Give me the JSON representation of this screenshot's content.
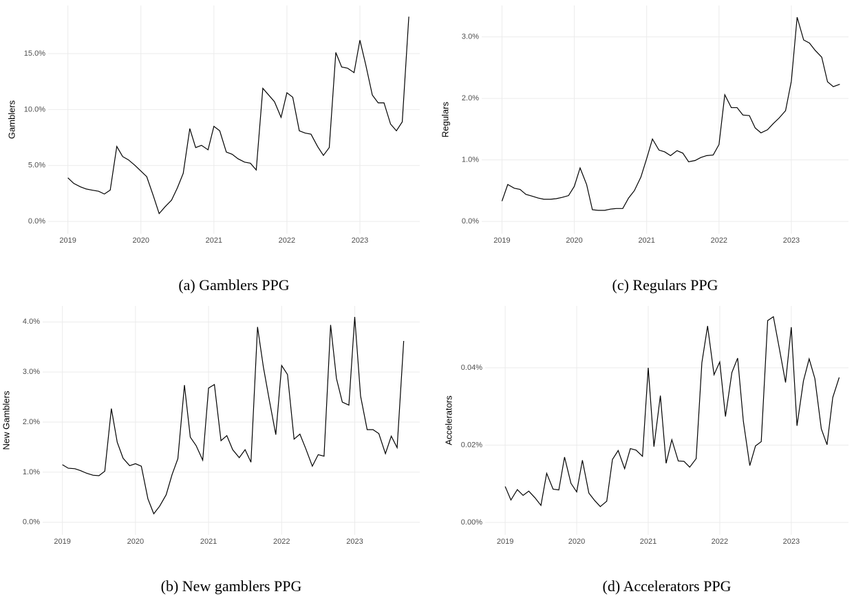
{
  "chart_data": [
    {
      "type": "line",
      "caption": "(a) Gamblers PPG",
      "y_label": "Gamblers",
      "color": "#000000",
      "grid": true,
      "x": [
        2019.0,
        2019.08,
        2019.17,
        2019.25,
        2019.33,
        2019.42,
        2019.5,
        2019.58,
        2019.67,
        2019.75,
        2019.83,
        2019.92,
        2020.0,
        2020.08,
        2020.17,
        2020.25,
        2020.33,
        2020.42,
        2020.5,
        2020.58,
        2020.67,
        2020.75,
        2020.83,
        2020.92,
        2021.0,
        2021.08,
        2021.17,
        2021.25,
        2021.33,
        2021.42,
        2021.5,
        2021.58,
        2021.67,
        2021.75,
        2021.83,
        2021.92,
        2022.0,
        2022.08,
        2022.17,
        2022.25,
        2022.33,
        2022.42,
        2022.5,
        2022.58,
        2022.67,
        2022.75,
        2022.83,
        2022.92,
        2023.0,
        2023.08,
        2023.17,
        2023.25,
        2023.33,
        2023.42,
        2023.5,
        2023.58,
        2023.67
      ],
      "values": [
        3.9,
        3.4,
        3.1,
        2.9,
        2.8,
        2.7,
        2.45,
        2.8,
        6.7,
        5.8,
        5.5,
        5.0,
        4.5,
        4.0,
        2.3,
        0.7,
        1.3,
        1.9,
        3.0,
        4.3,
        8.3,
        6.6,
        6.8,
        6.4,
        8.5,
        8.1,
        6.2,
        6.0,
        5.6,
        5.3,
        5.2,
        4.6,
        11.9,
        11.3,
        10.7,
        9.3,
        11.5,
        11.1,
        8.1,
        7.9,
        7.8,
        6.7,
        5.9,
        6.6,
        15.1,
        13.8,
        13.7,
        13.3,
        16.2,
        14.0,
        11.3,
        10.6,
        10.6,
        8.7,
        8.1,
        8.9,
        18.3
      ],
      "xlim": [
        2018.73,
        2023.82
      ],
      "xticks": [
        2019,
        2020,
        2021,
        2022,
        2023
      ],
      "ylim": [
        -1.1,
        19.3
      ],
      "yticks": [
        {
          "value": 0,
          "label": "0.0%"
        },
        {
          "value": 5,
          "label": "5.0%"
        },
        {
          "value": 10,
          "label": "10.0%"
        },
        {
          "value": 15,
          "label": "15.0%"
        }
      ]
    },
    {
      "type": "line",
      "caption": "(c) Regulars PPG",
      "y_label": "Regulars",
      "color": "#000000",
      "grid": true,
      "x": [
        2019.0,
        2019.08,
        2019.17,
        2019.25,
        2019.33,
        2019.42,
        2019.5,
        2019.58,
        2019.67,
        2019.75,
        2019.83,
        2019.92,
        2020.0,
        2020.08,
        2020.17,
        2020.25,
        2020.33,
        2020.42,
        2020.5,
        2020.58,
        2020.67,
        2020.75,
        2020.83,
        2020.92,
        2021.0,
        2021.08,
        2021.17,
        2021.25,
        2021.33,
        2021.42,
        2021.5,
        2021.58,
        2021.67,
        2021.75,
        2021.83,
        2021.92,
        2022.0,
        2022.08,
        2022.17,
        2022.25,
        2022.33,
        2022.42,
        2022.5,
        2022.58,
        2022.67,
        2022.75,
        2022.83,
        2022.92,
        2023.0,
        2023.08,
        2023.17,
        2023.25,
        2023.33,
        2023.42,
        2023.5,
        2023.58,
        2023.67
      ],
      "values": [
        0.33,
        0.6,
        0.54,
        0.52,
        0.44,
        0.41,
        0.38,
        0.36,
        0.36,
        0.37,
        0.39,
        0.42,
        0.57,
        0.87,
        0.6,
        0.19,
        0.18,
        0.18,
        0.2,
        0.21,
        0.21,
        0.38,
        0.5,
        0.72,
        1.02,
        1.34,
        1.16,
        1.13,
        1.07,
        1.15,
        1.11,
        0.97,
        0.99,
        1.04,
        1.07,
        1.08,
        1.25,
        2.06,
        1.85,
        1.85,
        1.73,
        1.72,
        1.52,
        1.44,
        1.49,
        1.59,
        1.68,
        1.8,
        2.28,
        3.32,
        2.95,
        2.9,
        2.78,
        2.67,
        2.27,
        2.19,
        2.23
      ],
      "xlim": [
        2018.72,
        2023.79
      ],
      "xticks": [
        2019,
        2020,
        2021,
        2022,
        2023
      ],
      "ylim": [
        -0.2,
        3.51
      ],
      "yticks": [
        {
          "value": 0,
          "label": "0.0%"
        },
        {
          "value": 1,
          "label": "1.0%"
        },
        {
          "value": 2,
          "label": "2.0%"
        },
        {
          "value": 3,
          "label": "3.0%"
        }
      ]
    },
    {
      "type": "line",
      "caption": "(b) New gamblers PPG",
      "y_label": "New Gamblers",
      "color": "#000000",
      "grid": true,
      "x": [
        2019.0,
        2019.08,
        2019.17,
        2019.25,
        2019.33,
        2019.42,
        2019.5,
        2019.58,
        2019.67,
        2019.75,
        2019.83,
        2019.92,
        2020.0,
        2020.08,
        2020.17,
        2020.25,
        2020.33,
        2020.42,
        2020.5,
        2020.58,
        2020.67,
        2020.75,
        2020.83,
        2020.92,
        2021.0,
        2021.08,
        2021.17,
        2021.25,
        2021.33,
        2021.42,
        2021.5,
        2021.58,
        2021.67,
        2021.75,
        2021.83,
        2021.92,
        2022.0,
        2022.08,
        2022.17,
        2022.25,
        2022.33,
        2022.42,
        2022.5,
        2022.58,
        2022.67,
        2022.75,
        2022.83,
        2022.92,
        2023.0,
        2023.08,
        2023.17,
        2023.25,
        2023.33,
        2023.42,
        2023.5,
        2023.58,
        2023.67
      ],
      "values": [
        1.15,
        1.08,
        1.07,
        1.03,
        0.98,
        0.94,
        0.93,
        1.02,
        2.27,
        1.6,
        1.28,
        1.13,
        1.17,
        1.12,
        0.47,
        0.17,
        0.32,
        0.55,
        0.95,
        1.27,
        2.74,
        1.7,
        1.53,
        1.24,
        2.68,
        2.75,
        1.63,
        1.73,
        1.45,
        1.29,
        1.45,
        1.2,
        3.9,
        3.1,
        2.45,
        1.75,
        3.13,
        2.95,
        1.66,
        1.76,
        1.47,
        1.12,
        1.35,
        1.32,
        3.94,
        2.87,
        2.4,
        2.34,
        4.1,
        2.52,
        1.85,
        1.85,
        1.77,
        1.37,
        1.72,
        1.49,
        3.62
      ],
      "xlim": [
        2018.73,
        2023.89
      ],
      "xticks": [
        2019,
        2020,
        2021,
        2022,
        2023
      ],
      "ylim": [
        -0.25,
        4.32
      ],
      "yticks": [
        {
          "value": 0,
          "label": "0.0%"
        },
        {
          "value": 1,
          "label": "1.0%"
        },
        {
          "value": 2,
          "label": "2.0%"
        },
        {
          "value": 3,
          "label": "3.0%"
        },
        {
          "value": 4,
          "label": "4.0%"
        }
      ]
    },
    {
      "type": "line",
      "caption": "(d) Accelerators PPG",
      "y_label": "Accelerators",
      "color": "#000000",
      "grid": true,
      "x": [
        2019.0,
        2019.08,
        2019.17,
        2019.25,
        2019.33,
        2019.42,
        2019.5,
        2019.58,
        2019.67,
        2019.75,
        2019.83,
        2019.92,
        2020.0,
        2020.08,
        2020.17,
        2020.25,
        2020.33,
        2020.42,
        2020.5,
        2020.58,
        2020.67,
        2020.75,
        2020.83,
        2020.92,
        2021.0,
        2021.08,
        2021.17,
        2021.25,
        2021.33,
        2021.42,
        2021.5,
        2021.58,
        2021.67,
        2021.75,
        2021.83,
        2021.92,
        2022.0,
        2022.08,
        2022.17,
        2022.25,
        2022.33,
        2022.42,
        2022.5,
        2022.58,
        2022.67,
        2022.75,
        2022.83,
        2022.92,
        2023.0,
        2023.08,
        2023.17,
        2023.25,
        2023.33,
        2023.42,
        2023.5,
        2023.58,
        2023.67
      ],
      "values": [
        0.0093,
        0.0058,
        0.0085,
        0.007,
        0.0081,
        0.0063,
        0.0044,
        0.0127,
        0.0086,
        0.0084,
        0.0169,
        0.0101,
        0.0079,
        0.0161,
        0.0076,
        0.0057,
        0.0041,
        0.0055,
        0.0163,
        0.0186,
        0.0139,
        0.0191,
        0.0187,
        0.0171,
        0.04,
        0.0196,
        0.0328,
        0.0153,
        0.0214,
        0.0159,
        0.0158,
        0.0143,
        0.0165,
        0.0413,
        0.0508,
        0.0382,
        0.0415,
        0.0274,
        0.0388,
        0.0425,
        0.0262,
        0.0147,
        0.0198,
        0.0209,
        0.0522,
        0.0532,
        0.0453,
        0.0362,
        0.0505,
        0.025,
        0.0366,
        0.0423,
        0.0372,
        0.0242,
        0.0201,
        0.0323,
        0.0375
      ],
      "xlim": [
        2018.72,
        2023.8
      ],
      "xticks": [
        2019,
        2020,
        2021,
        2022,
        2023
      ],
      "ylim": [
        -0.0032,
        0.056
      ],
      "yticks": [
        {
          "value": 0,
          "label": "0.00%"
        },
        {
          "value": 0.02,
          "label": "0.02%"
        },
        {
          "value": 0.04,
          "label": "0.04%"
        }
      ]
    }
  ]
}
